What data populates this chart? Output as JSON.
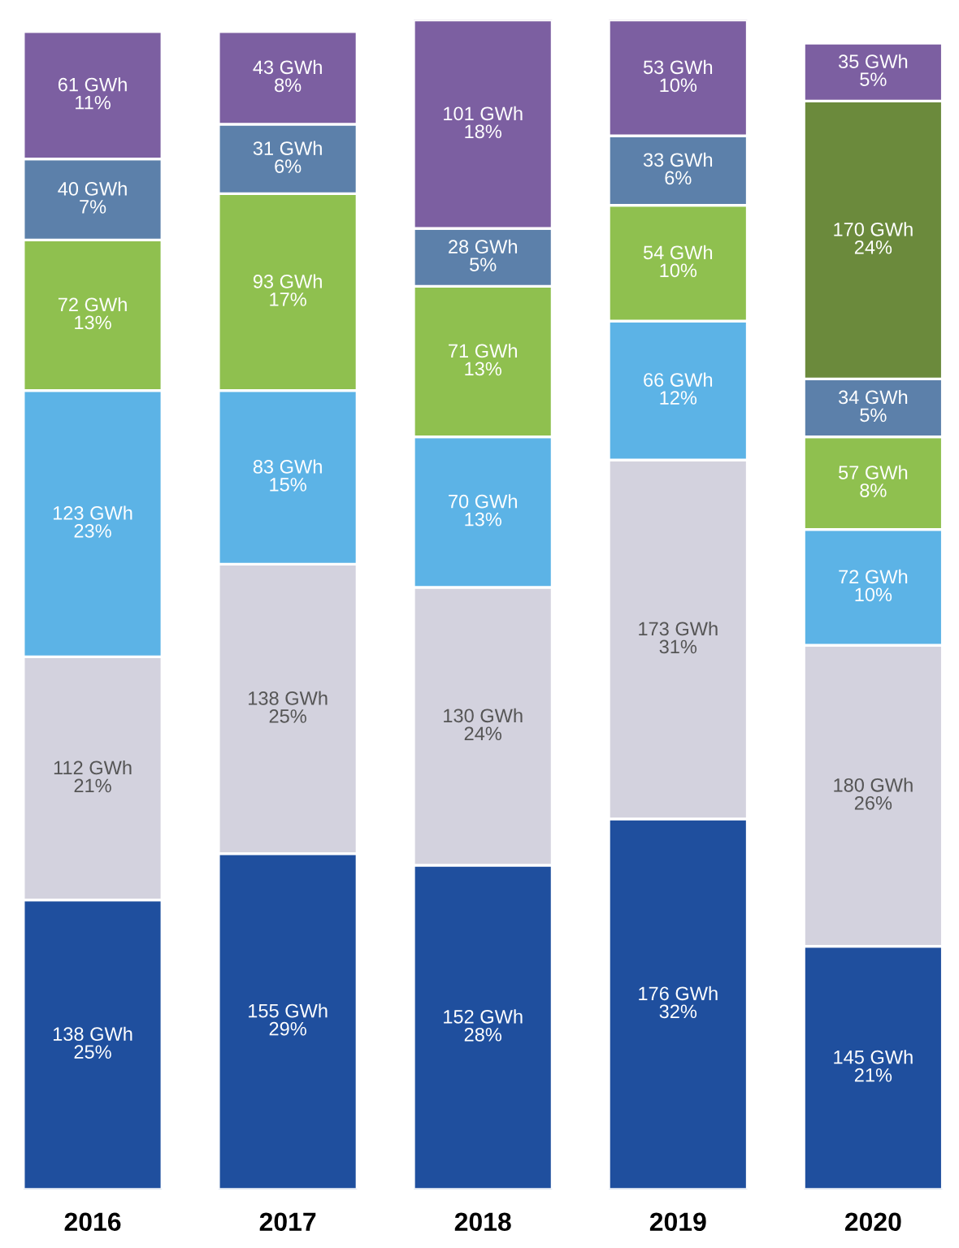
{
  "chart_data": {
    "type": "bar",
    "stacked": true,
    "categories": [
      "2016",
      "2017",
      "2018",
      "2019",
      "2020"
    ],
    "grid": false,
    "series": [
      {
        "color": "#1f4f9e",
        "values": [
          25,
          29,
          28,
          32,
          21
        ],
        "value_labels": [
          "138 GWh\n25%",
          "155 GWh\n29%",
          "152 GWh\n28%",
          "176 GWh\n32%",
          "145 GWh\n21%"
        ]
      },
      {
        "color": "#d3d2de",
        "values": [
          21,
          25,
          24,
          31,
          26
        ],
        "value_labels": [
          "112 GWh\n21%",
          "138 GWh\n25%",
          "130 GWh\n24%",
          "173 GWh\n31%",
          "180 GWh\n26%"
        ]
      },
      {
        "color": "#5cb3e6",
        "values": [
          23,
          15,
          13,
          12,
          10
        ],
        "value_labels": [
          "123 GWh\n23%",
          "83 GWh\n15%",
          "70 GWh\n13%",
          "66 GWh\n12%",
          "72 GWh\n10%"
        ]
      },
      {
        "color": "#8fc04f",
        "values": [
          13,
          17,
          13,
          10,
          8
        ],
        "value_labels": [
          "72 GWh\n13%",
          "93 GWh\n17%",
          "71 GWh\n13%",
          "54 GWh\n10%",
          "57 GWh\n8%"
        ]
      },
      {
        "color": "#5c80aa",
        "values": [
          7,
          6,
          5,
          6,
          5
        ],
        "value_labels": [
          "40 GWh\n7%",
          "31 GWh\n6%",
          "28 GWh\n5%",
          "33 GWh\n6%",
          "34 GWh\n5%"
        ]
      },
      {
        "color": "#6b8a3c",
        "values": [
          null,
          null,
          null,
          null,
          24
        ],
        "value_labels": [
          null,
          null,
          null,
          null,
          "170 GWh\n24%"
        ]
      },
      {
        "color": "#7c5fa1",
        "values": [
          11,
          8,
          18,
          10,
          5
        ],
        "value_labels": [
          "61 GWh\n11%",
          "43 GWh\n8%",
          "101 GWh\n18%",
          "53 GWh\n10%",
          "35 GWh\n5%"
        ]
      }
    ]
  }
}
